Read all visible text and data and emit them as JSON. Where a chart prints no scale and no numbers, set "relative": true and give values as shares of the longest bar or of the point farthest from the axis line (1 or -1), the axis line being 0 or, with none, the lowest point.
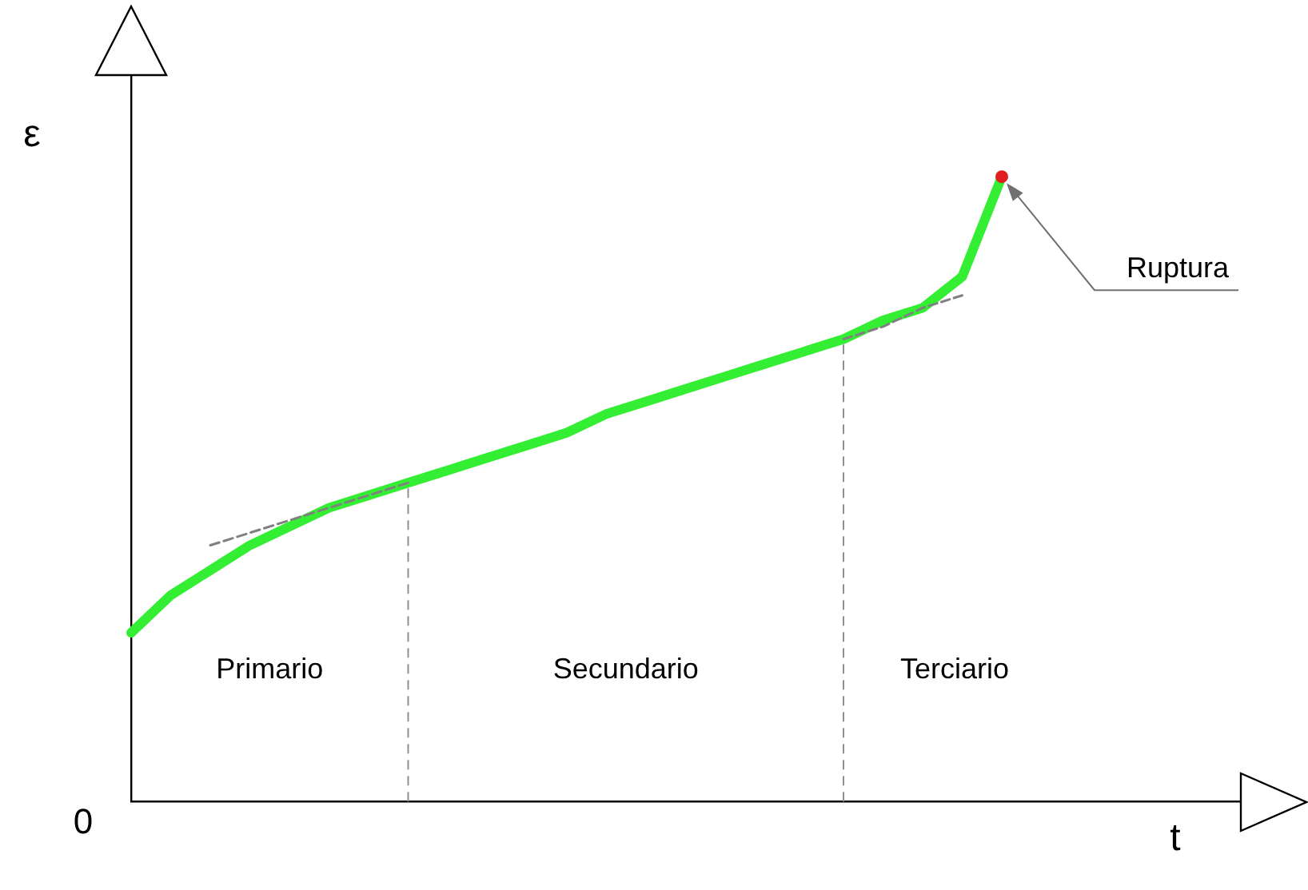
{
  "chart_data": {
    "type": "line",
    "relative": true,
    "xlabel": "t",
    "ylabel": "ε",
    "legend": false,
    "grid": false,
    "marker": "none",
    "categories": [
      null,
      null,
      null,
      null,
      null,
      null,
      null,
      null,
      null,
      null,
      null,
      null,
      null,
      null,
      null,
      null,
      null,
      null,
      null,
      null,
      null,
      null,
      null,
      null,
      null,
      null,
      null,
      null,
      null
    ],
    "series": [
      {
        "color": "#33ee33",
        "values": [
          0.27,
          0.33,
          0.37,
          0.41,
          0.44,
          0.47,
          0.49,
          0.51,
          0.53,
          0.55,
          0.57,
          0.59,
          0.62,
          0.64,
          0.66,
          0.68,
          0.7,
          0.72,
          0.74,
          0.77,
          0.79,
          0.84,
          1,
          null,
          null,
          null,
          null,
          null,
          null
        ]
      },
      {
        "color": "#808080",
        "line_style": "dashed",
        "values": [
          null,
          null,
          0.41,
          0.43,
          0.45,
          0.47,
          0.49,
          0.51,
          null,
          null,
          null,
          null,
          null,
          null,
          null,
          null,
          null,
          null,
          null,
          null,
          null,
          null,
          null,
          null,
          null,
          null,
          null,
          null,
          null
        ]
      },
      {
        "color": "#808080",
        "line_style": "dashed",
        "values": [
          null,
          null,
          null,
          null,
          null,
          null,
          null,
          null,
          null,
          null,
          null,
          null,
          null,
          null,
          null,
          null,
          null,
          null,
          0.74,
          0.76,
          0.79,
          0.81,
          null,
          null,
          null,
          null,
          null,
          null,
          null
        ]
      }
    ],
    "annotations": [
      "Primario",
      "Secundario",
      "Terciario",
      "Ruptura",
      "0"
    ]
  }
}
